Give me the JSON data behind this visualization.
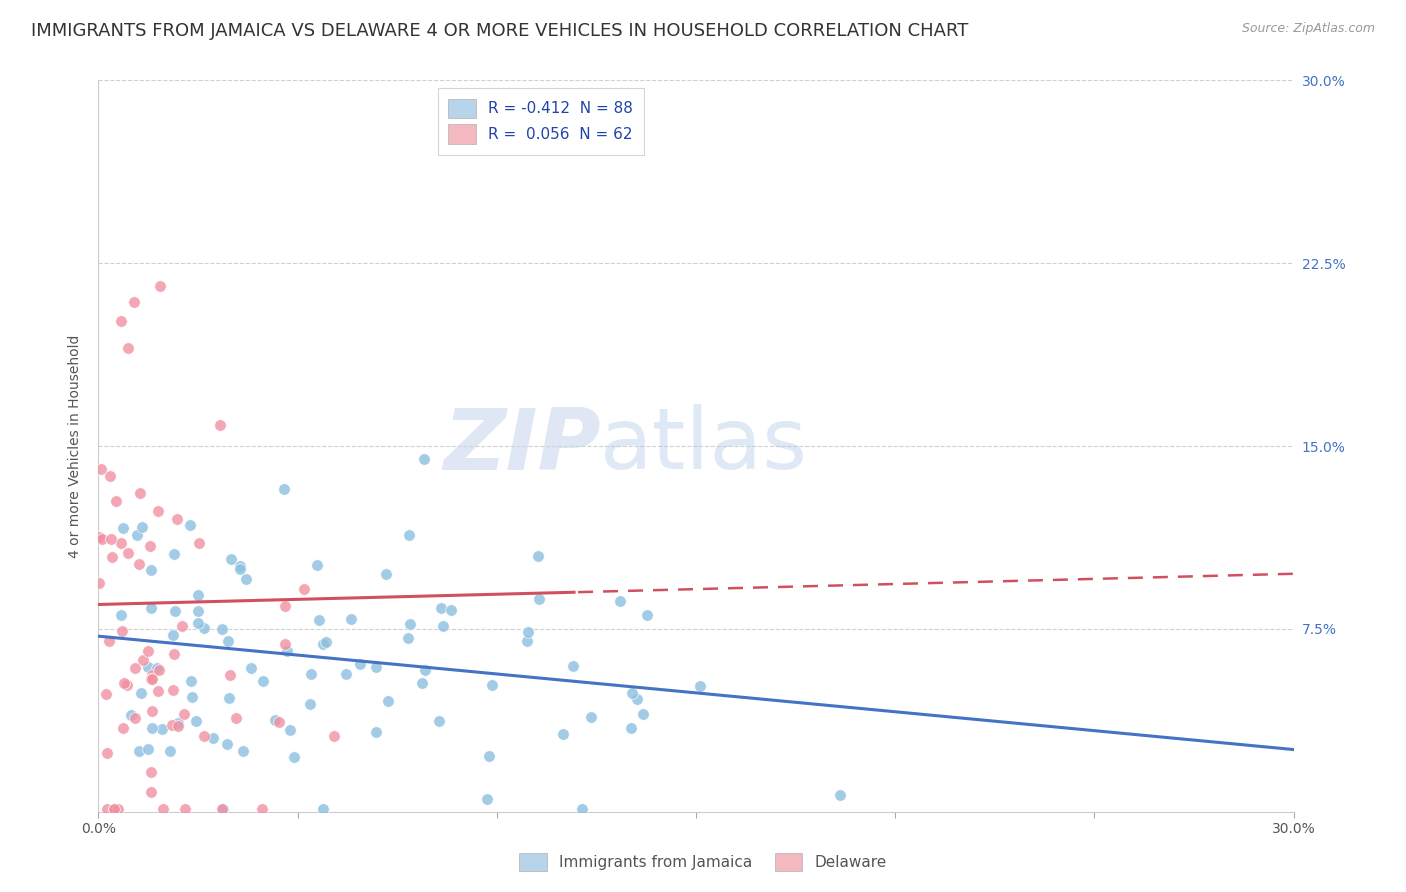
{
  "title": "IMMIGRANTS FROM JAMAICA VS DELAWARE 4 OR MORE VEHICLES IN HOUSEHOLD CORRELATION CHART",
  "source": "Source: ZipAtlas.com",
  "ylabel": "4 or more Vehicles in Household",
  "xlim": [
    0.0,
    0.3
  ],
  "ylim": [
    0.0,
    0.3
  ],
  "legend_entries": [
    {
      "label": "R = -0.412  N = 88",
      "color": "#b8d4ea"
    },
    {
      "label": "R =  0.056  N = 62",
      "color": "#f4b8c0"
    }
  ],
  "legend_bottom": [
    {
      "label": "Immigrants from Jamaica",
      "color": "#b8d4ea"
    },
    {
      "label": "Delaware",
      "color": "#f4b8c0"
    }
  ],
  "watermark_zip": "ZIP",
  "watermark_atlas": "atlas",
  "series1_color": "#8bbfe0",
  "series2_color": "#f090a0",
  "series1_line_color": "#4472c4",
  "series2_line_color": "#d05060",
  "series1_slope": -0.155,
  "series1_intercept": 0.072,
  "series2_slope": 0.042,
  "series2_intercept": 0.085,
  "background_color": "#ffffff",
  "grid_color": "#d0d0d0",
  "title_fontsize": 13,
  "axis_fontsize": 10,
  "tick_fontsize": 10,
  "seed1": 15,
  "seed2": 77,
  "N1": 88,
  "N2": 62
}
